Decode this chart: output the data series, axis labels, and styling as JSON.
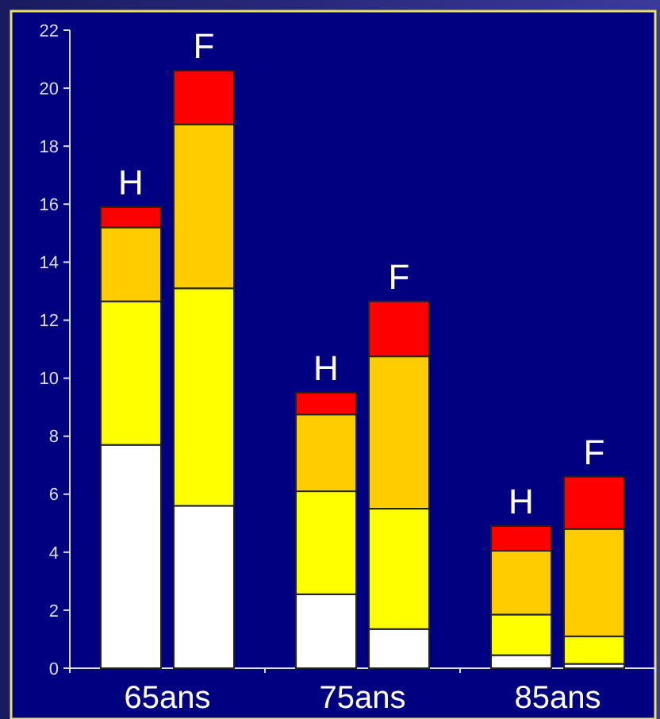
{
  "chart_data": {
    "type": "bar",
    "stacked": true,
    "categories": [
      "H",
      "F",
      "H",
      "F",
      "H",
      "F"
    ],
    "series": [
      {
        "color": "#ffffff",
        "values": [
          7.7,
          5.6,
          2.55,
          1.35,
          0.45,
          0.15
        ]
      },
      {
        "color": "#ffff00",
        "values": [
          4.95,
          7.5,
          3.55,
          4.15,
          1.4,
          0.95
        ]
      },
      {
        "color": "#ffcc00",
        "values": [
          2.55,
          5.65,
          2.65,
          5.25,
          2.2,
          3.7
        ]
      },
      {
        "color": "#ff0000",
        "values": [
          0.7,
          1.85,
          0.75,
          1.9,
          0.85,
          1.8
        ]
      }
    ],
    "ylim": [
      0,
      22
    ],
    "yticks": [
      0,
      2,
      4,
      6,
      8,
      10,
      12,
      14,
      16,
      18,
      20,
      22
    ],
    "annotations": [
      "65ans",
      "75ans",
      "85ans"
    ]
  }
}
